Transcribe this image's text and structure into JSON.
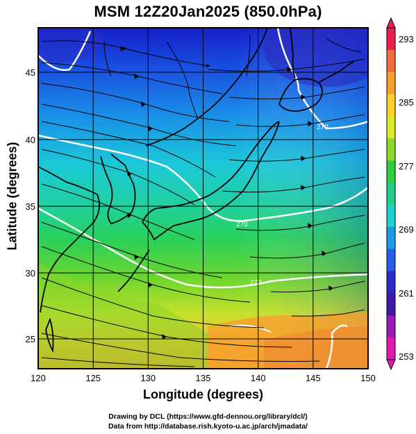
{
  "title": "MSM 12Z20Jan2025 (850.0hPa)",
  "axes": {
    "xlabel": "Longitude (degrees)",
    "ylabel": "Latitude  (degrees)",
    "xticks": [
      "120",
      "125",
      "130",
      "135",
      "140",
      "145",
      "150"
    ],
    "yticks": [
      "25",
      "30",
      "35",
      "40",
      "45"
    ]
  },
  "colorbar": {
    "labels": [
      "293",
      "285",
      "277",
      "269",
      "261",
      "253"
    ],
    "colors": [
      "#e8204a",
      "#f06a3a",
      "#f5a02e",
      "#f8d02a",
      "#d8e82a",
      "#8ad82e",
      "#2ecf3a",
      "#20d08a",
      "#1ed0d0",
      "#1a9ae8",
      "#2a5ae8",
      "#2a2ac8",
      "#4018a8",
      "#9a1ab8",
      "#e01ab0"
    ]
  },
  "contour_labels": [
    "270",
    "270",
    "270"
  ],
  "credits": {
    "line1": "Drawing by DCL (https://www.gfd-dennou.org/library/dcl/)",
    "line2": "Data from http://database.rish.kyoto-u.ac.jp/arch/jmadata/"
  },
  "chart_data": {
    "type": "heatmap",
    "variable": "temperature at 850.0hPa with wind streamlines",
    "xlim": [
      120,
      150
    ],
    "ylim": [
      22.5,
      47.5
    ],
    "colorbar_range": [
      253,
      293
    ],
    "contours": [
      270
    ]
  }
}
